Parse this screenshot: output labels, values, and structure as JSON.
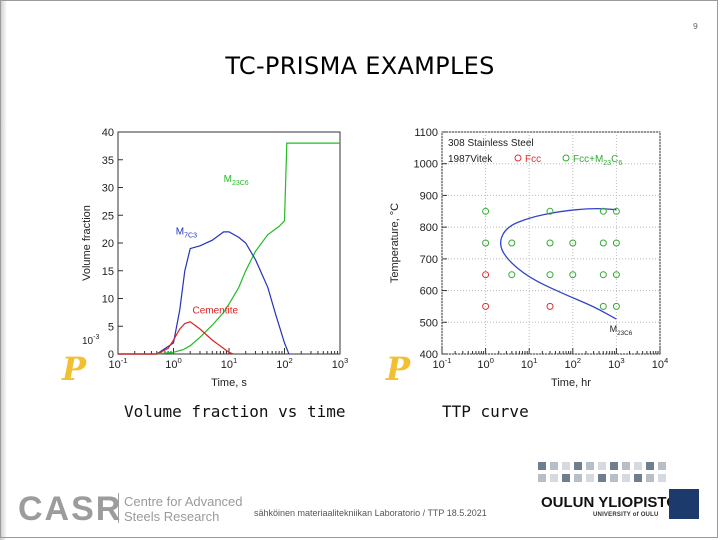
{
  "slide": {
    "page_number": "9",
    "title": "TC-PRISMA EXAMPLES",
    "caption_left": "Volume fraction vs time",
    "caption_right": "TTP curve"
  },
  "footer": {
    "org_abbrev": "CASR",
    "org_name_line1": "Centre for Advanced",
    "org_name_line2": "Steels Research",
    "meta_text": "sähköinen materiaalitekniikan Laboratorio / TTP 18.5.2021",
    "university": "OULUN YLIOPISTO",
    "university_sub": "UNIVERSITY of OULU"
  },
  "chart_data": [
    {
      "type": "line",
      "title": "Volume fraction vs time",
      "xlabel": "Time, s",
      "ylabel": "Volume fraction",
      "xscale": "log",
      "xlim": [
        0.1,
        1000
      ],
      "ylim": [
        0,
        40
      ],
      "y_multiplier_label": "10-3",
      "x_tick_labels": [
        "10-1",
        "100",
        "101",
        "102",
        "103"
      ],
      "y_tick_labels": [
        "0",
        "5",
        "10",
        "15",
        "20",
        "25",
        "30",
        "35",
        "40"
      ],
      "series": [
        {
          "name": "M23C6",
          "color": "#22bb22",
          "x": [
            0.1,
            0.5,
            1,
            1.5,
            2,
            3,
            5,
            8,
            10,
            15,
            20,
            30,
            50,
            80,
            100,
            110,
            150,
            300,
            1000
          ],
          "y": [
            0,
            0,
            0.3,
            0.8,
            1.5,
            3,
            5.2,
            7.5,
            9,
            12,
            15,
            18.5,
            21.5,
            23,
            24,
            38,
            38,
            38,
            38
          ]
        },
        {
          "name": "M7C3",
          "color": "#2233bb",
          "x": [
            0.1,
            0.5,
            1,
            1.3,
            1.6,
            2,
            3,
            5,
            8,
            10,
            15,
            20,
            30,
            50,
            70,
            100,
            120
          ],
          "y": [
            0,
            0,
            2,
            8,
            15,
            19,
            19.5,
            20.5,
            22,
            22,
            21,
            20,
            17,
            12,
            7,
            2,
            0
          ]
        },
        {
          "name": "Cementite",
          "color": "#dd2222",
          "x": [
            0.1,
            0.5,
            0.8,
            1,
            1.3,
            1.6,
            2,
            3,
            5,
            8,
            10,
            12
          ],
          "y": [
            0,
            0,
            1,
            2.5,
            4.5,
            5.5,
            5.8,
            4.5,
            2.5,
            1,
            0.3,
            0
          ]
        }
      ],
      "annotations": [
        "M23C6",
        "M7C3",
        "Cementite"
      ]
    },
    {
      "type": "scatter",
      "title": "TTP curve",
      "xlabel": "Time, hr",
      "ylabel": "Temperature, °C",
      "xscale": "log",
      "xlim": [
        0.1,
        10000
      ],
      "ylim": [
        400,
        1100
      ],
      "x_tick_labels": [
        "10-1",
        "100",
        "101",
        "102",
        "103",
        "104"
      ],
      "y_tick_labels": [
        "400",
        "500",
        "600",
        "700",
        "800",
        "900",
        "1000",
        "1100"
      ],
      "legend": [
        "308 Stainless Steel",
        "1987Vitek",
        "Fcc",
        "Fcc+M23C6"
      ],
      "curve": {
        "name": "M23C6",
        "color": "#3344cc",
        "points": [
          [
            2,
            750
          ],
          [
            3,
            800
          ],
          [
            10,
            830
          ],
          [
            50,
            850
          ],
          [
            300,
            860
          ],
          [
            1000,
            855
          ]
        ],
        "lower_points": [
          [
            2,
            750
          ],
          [
            3,
            700
          ],
          [
            10,
            640
          ],
          [
            60,
            590
          ],
          [
            300,
            550
          ],
          [
            1000,
            510
          ]
        ]
      },
      "series": [
        {
          "name": "Fcc",
          "color": "#e03030",
          "x": [
            1,
            1,
            30
          ],
          "y": [
            650,
            550,
            550
          ]
        },
        {
          "name": "Fcc+M23C6",
          "color": "#33aa33",
          "x": [
            1,
            30,
            500,
            1000,
            1,
            4,
            30,
            100,
            500,
            1000,
            4,
            30,
            100,
            500,
            1000,
            500,
            1000
          ],
          "y": [
            850,
            850,
            850,
            850,
            750,
            750,
            750,
            750,
            750,
            750,
            650,
            650,
            650,
            650,
            650,
            550,
            550
          ]
        }
      ]
    }
  ]
}
